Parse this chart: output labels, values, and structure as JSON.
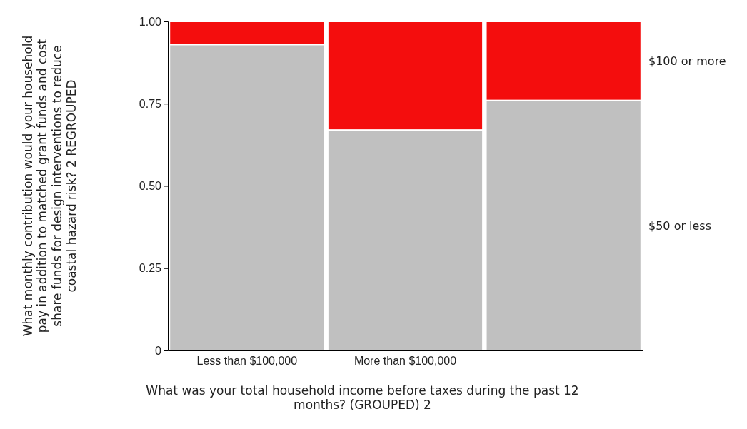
{
  "chart_data": {
    "type": "bar",
    "stacked": true,
    "xlabel": "What was your total household income before taxes during the past 12 months? (GROUPED) 2",
    "ylabel": "What monthly contribution would your household pay in addition to matched grant funds and cost share funds for design interventions to reduce coastal hazard risk? 2 REGROUPED",
    "categories": [
      "Less than $100,000",
      "More than $100,000",
      null
    ],
    "series": [
      {
        "name": "$50 or less",
        "color": "#c0c0c0",
        "values": [
          0.93,
          0.67,
          0.76
        ]
      },
      {
        "name": "$100 or more",
        "color": "#f40d0d",
        "values": [
          0.07,
          0.33,
          0.24
        ]
      }
    ],
    "ylim": [
      0,
      1
    ],
    "yticks": [
      0,
      {
        "value": 0.25,
        "label": "0.25"
      },
      {
        "value": 0.5,
        "label": "0.50"
      },
      {
        "value": 0.75,
        "label": "0.75"
      },
      {
        "value": 1,
        "label": "1.00"
      }
    ],
    "legend": "right"
  }
}
